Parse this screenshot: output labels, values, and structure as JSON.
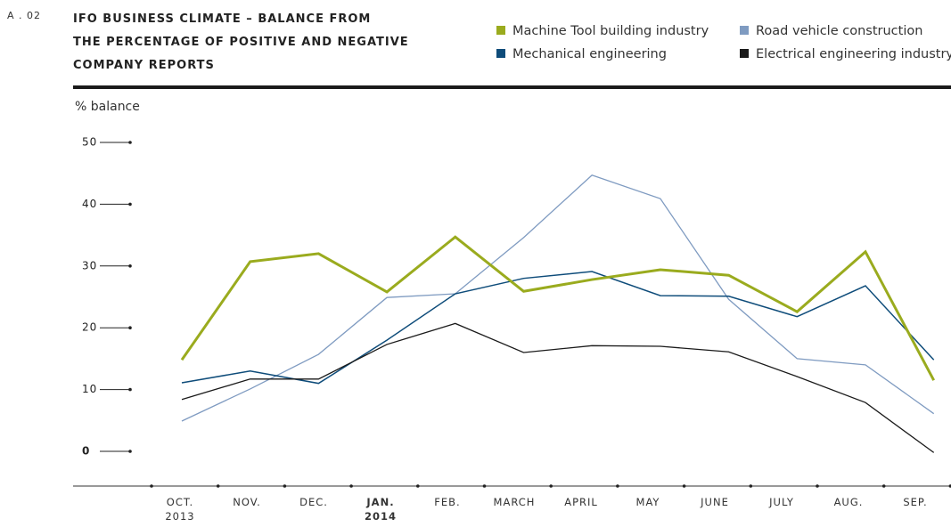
{
  "chart_data": {
    "type": "line",
    "figure_label": "A . 02",
    "title": "IFO BUSINESS CLIMATE – BALANCE FROM\nTHE PERCENTAGE OF POSITIVE AND NEGATIVE\nCOMPANY REPORTS",
    "y_label": "% balance",
    "categories": [
      "OCT.\n2013",
      "NOV.",
      "DEC.",
      "JAN.\n2014",
      "FEB.",
      "MARCH",
      "APRIL",
      "MAY",
      "JUNE",
      "JULY",
      "AUG.",
      "SEP."
    ],
    "ylim": [
      0,
      50
    ],
    "yticks": [
      0,
      10,
      20,
      30,
      40,
      50
    ],
    "series": [
      {
        "name": "Machine Tool building industry",
        "color": "#9aab1e",
        "width": 3,
        "values": [
          14.8,
          30.7,
          32.0,
          25.8,
          34.7,
          25.9,
          27.8,
          29.4,
          28.5,
          22.6,
          32.3,
          11.5
        ]
      },
      {
        "name": "Road vehicle construction",
        "color": "#7f9bc1",
        "width": 1.3,
        "values": [
          4.9,
          10.1,
          15.7,
          24.9,
          25.5,
          34.6,
          44.7,
          40.9,
          24.6,
          15.0,
          14.0,
          6.1
        ]
      },
      {
        "name": "Mechanical engineering",
        "color": "#0e4c7a",
        "width": 1.5,
        "values": [
          11.1,
          13.0,
          11.0,
          18.0,
          25.5,
          28.0,
          29.1,
          25.2,
          25.1,
          21.8,
          26.8,
          14.8
        ]
      },
      {
        "name": "Electrical engineering industry",
        "color": "#1a1a1a",
        "width": 1.3,
        "values": [
          8.4,
          11.7,
          11.7,
          17.3,
          20.7,
          16.0,
          17.1,
          17.0,
          16.1,
          12.1,
          7.9,
          -0.2
        ]
      }
    ]
  }
}
